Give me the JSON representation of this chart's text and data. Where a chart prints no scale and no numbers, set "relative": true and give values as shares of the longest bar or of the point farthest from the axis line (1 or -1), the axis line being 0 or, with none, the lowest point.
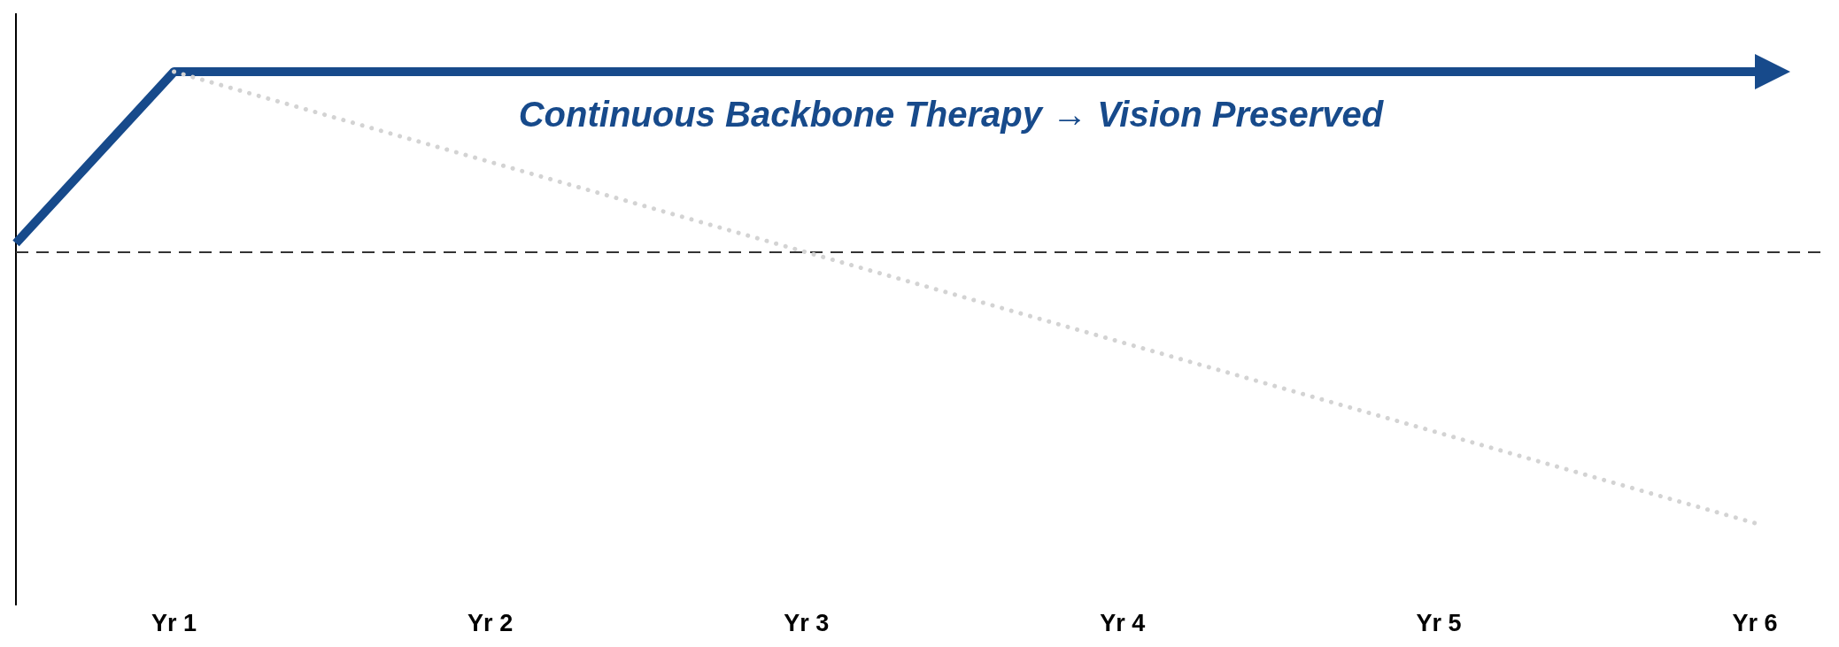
{
  "chart_data": {
    "type": "line",
    "relative": true,
    "categories": [
      null,
      "Yr 1",
      null,
      "Yr 2",
      null,
      "Yr 3",
      null,
      "Yr 4",
      null,
      "Yr 5",
      null,
      "Yr 6"
    ],
    "series": [
      {
        "color": "#174a8b",
        "values": [
          0.62,
          1,
          1,
          1,
          1,
          1,
          1,
          1,
          1,
          1,
          1,
          1
        ],
        "line_style": "solid"
      },
      {
        "color": "#d3d3d3",
        "values": [
          null,
          1,
          0.9,
          0.8,
          0.7,
          0.6,
          0.5,
          0.4,
          0.3,
          0.2,
          0.1,
          0
        ],
        "line_style": "dotted"
      }
    ],
    "ref_lines": [
      {
        "axis": "y",
        "value": 0.6,
        "color": "#333333",
        "line_style": "dashed"
      }
    ],
    "annotations": [
      "Continuous Backbone Therapy → Vision Preserved"
    ]
  }
}
